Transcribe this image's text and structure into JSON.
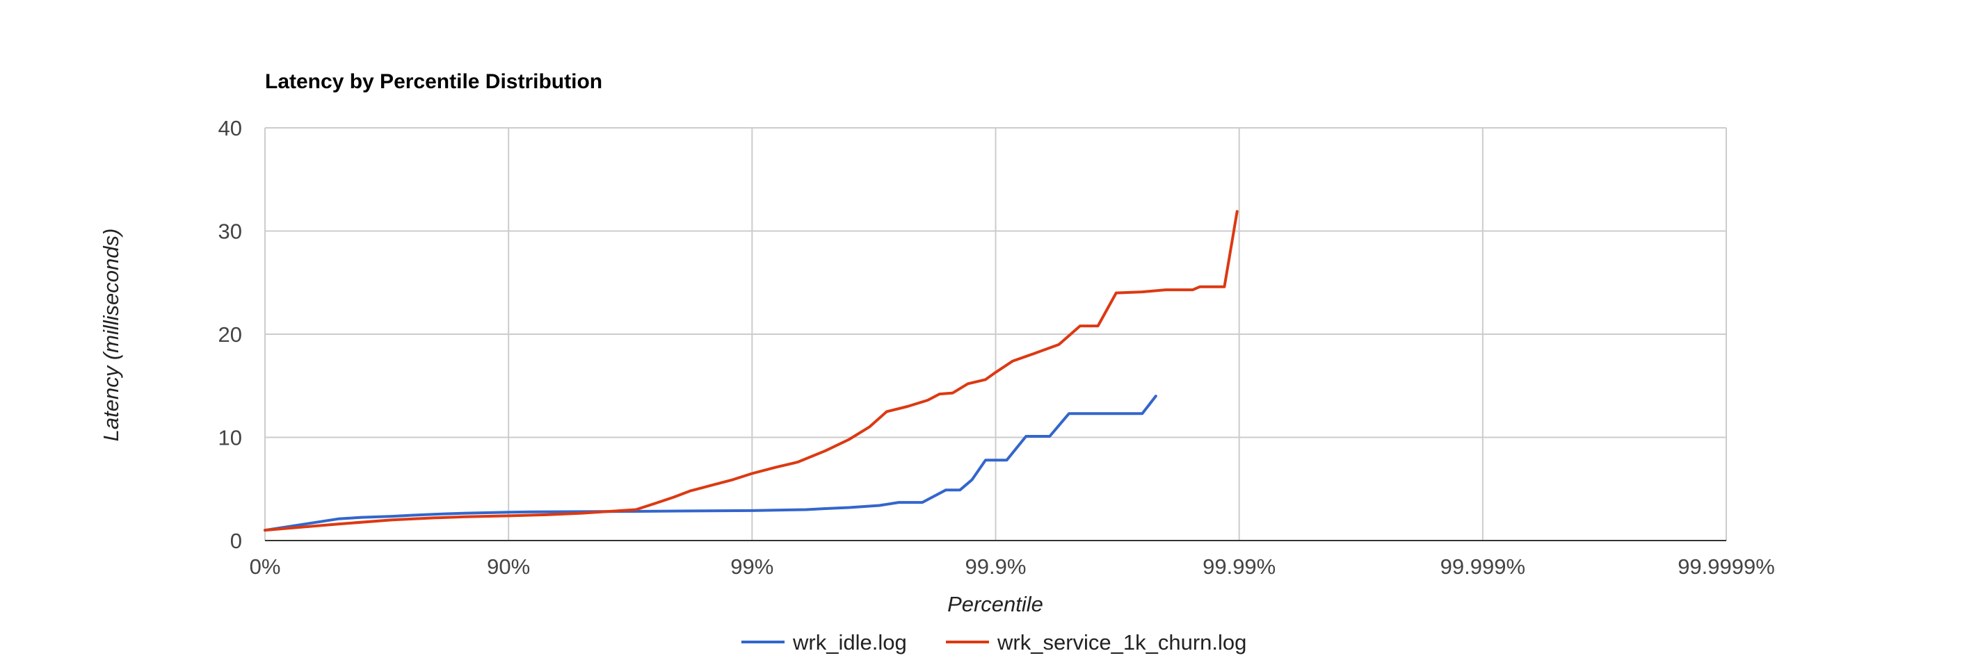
{
  "chart_data": {
    "type": "line",
    "title": "Latency by Percentile Distribution",
    "xlabel": "Percentile",
    "ylabel": "Latency (milliseconds)",
    "x_scale": "log-nines",
    "x_ticks": [
      "0%",
      "90%",
      "99%",
      "99.9%",
      "99.99%",
      "99.999%",
      "99.9999%"
    ],
    "y_ticks": [
      "0",
      "10",
      "20",
      "30",
      "40"
    ],
    "ylim": [
      0,
      40
    ],
    "grid": true,
    "legend": "bottom",
    "series": [
      {
        "name": "wrk_idle.log",
        "color": "#3366cc",
        "points": [
          [
            0,
            1.0
          ],
          [
            50,
            2.1
          ],
          [
            60,
            2.25
          ],
          [
            70,
            2.35
          ],
          [
            75,
            2.45
          ],
          [
            80,
            2.55
          ],
          [
            85,
            2.65
          ],
          [
            88,
            2.7
          ],
          [
            90,
            2.75
          ],
          [
            92,
            2.78
          ],
          [
            95,
            2.8
          ],
          [
            97,
            2.83
          ],
          [
            98,
            2.86
          ],
          [
            99,
            2.9
          ],
          [
            99.2,
            2.95
          ],
          [
            99.4,
            3.0
          ],
          [
            99.5,
            3.1
          ],
          [
            99.6,
            3.2
          ],
          [
            99.7,
            3.4
          ],
          [
            99.75,
            3.7
          ],
          [
            99.8,
            3.7
          ],
          [
            99.84,
            4.9
          ],
          [
            99.86,
            4.9
          ],
          [
            99.875,
            5.9
          ],
          [
            99.89,
            7.8
          ],
          [
            99.91,
            7.8
          ],
          [
            99.925,
            10.1
          ],
          [
            99.94,
            10.1
          ],
          [
            99.95,
            12.3
          ],
          [
            99.96,
            12.3
          ],
          [
            99.97,
            12.3
          ],
          [
            99.975,
            12.3
          ],
          [
            99.978,
            14.0
          ]
        ]
      },
      {
        "name": "wrk_service_1k_churn.log",
        "color": "#dc3912",
        "points": [
          [
            0,
            1.0
          ],
          [
            50,
            1.6
          ],
          [
            70,
            2.0
          ],
          [
            80,
            2.2
          ],
          [
            85,
            2.3
          ],
          [
            90,
            2.4
          ],
          [
            93,
            2.5
          ],
          [
            95,
            2.65
          ],
          [
            96,
            2.8
          ],
          [
            97,
            3.0
          ],
          [
            97.5,
            3.6
          ],
          [
            97.9,
            4.2
          ],
          [
            98.2,
            4.8
          ],
          [
            98.5,
            5.3
          ],
          [
            98.8,
            5.9
          ],
          [
            99,
            6.5
          ],
          [
            99.2,
            7.1
          ],
          [
            99.35,
            7.6
          ],
          [
            99.5,
            8.7
          ],
          [
            99.6,
            9.8
          ],
          [
            99.67,
            11.0
          ],
          [
            99.72,
            12.5
          ],
          [
            99.77,
            13.0
          ],
          [
            99.81,
            13.6
          ],
          [
            99.83,
            14.2
          ],
          [
            99.85,
            14.3
          ],
          [
            99.87,
            15.2
          ],
          [
            99.89,
            15.6
          ],
          [
            99.9,
            16.3
          ],
          [
            99.915,
            17.4
          ],
          [
            99.93,
            18.1
          ],
          [
            99.945,
            19.0
          ],
          [
            99.955,
            20.8
          ],
          [
            99.962,
            20.8
          ],
          [
            99.968,
            24.0
          ],
          [
            99.975,
            24.1
          ],
          [
            99.98,
            24.3
          ],
          [
            99.9845,
            24.3
          ],
          [
            99.9855,
            24.6
          ],
          [
            99.9885,
            24.6
          ],
          [
            99.9898,
            31.9
          ]
        ]
      }
    ]
  }
}
